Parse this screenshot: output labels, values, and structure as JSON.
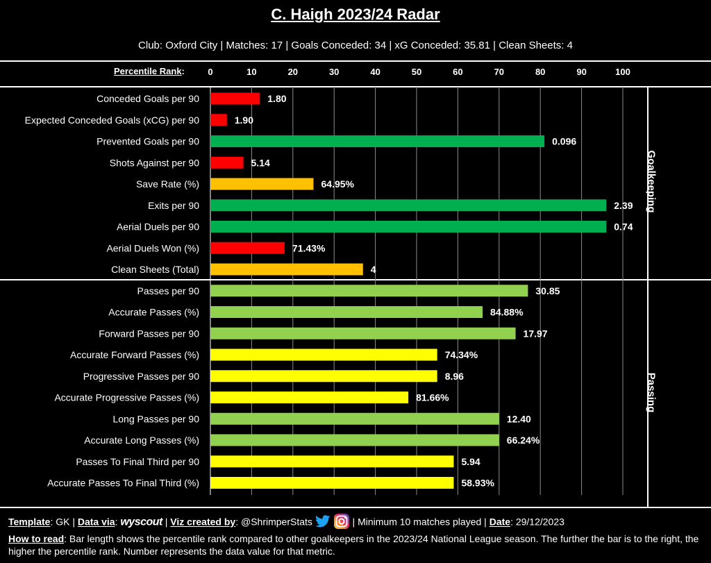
{
  "header": {
    "title": "C. Haigh 2023/24 Radar",
    "subtitle": "Club: Oxford City | Matches: 17 | Goals Conceded: 34 | xG Conceded: 35.81 | Clean Sheets: 4"
  },
  "axis": {
    "label": "Percentile Rank",
    "suffix": ":"
  },
  "chart_data": {
    "type": "bar",
    "orientation": "horizontal",
    "title": "C. Haigh 2023/24 Radar",
    "xlabel": "Percentile Rank",
    "xlim": [
      0,
      100
    ],
    "xticks": [
      "0",
      "10",
      "20",
      "30",
      "40",
      "50",
      "60",
      "70",
      "80",
      "90",
      "100"
    ],
    "sections": [
      {
        "name": "Goalkeeping",
        "bars": [
          {
            "label": "Conceded Goals per 90",
            "percentile": 12,
            "value": "1.80",
            "color": "#ff0000"
          },
          {
            "label": "Expected Conceded Goals (xCG) per 90",
            "percentile": 4,
            "value": "1.90",
            "color": "#ff0000"
          },
          {
            "label": "Prevented Goals per 90",
            "percentile": 81,
            "value": "0.096",
            "color": "#00b050"
          },
          {
            "label": "Shots Against per 90",
            "percentile": 8,
            "value": "5.14",
            "color": "#ff0000"
          },
          {
            "label": "Save Rate (%)",
            "percentile": 25,
            "value": "64.95%",
            "color": "#ffc000"
          },
          {
            "label": "Exits per 90",
            "percentile": 96,
            "value": "2.39",
            "color": "#00b050"
          },
          {
            "label": "Aerial Duels per 90",
            "percentile": 96,
            "value": "0.74",
            "color": "#00b050"
          },
          {
            "label": "Aerial Duels Won (%)",
            "percentile": 18,
            "value": "71.43%",
            "color": "#ff0000"
          },
          {
            "label": "Clean Sheets (Total)",
            "percentile": 37,
            "value": "4",
            "color": "#ffc000"
          }
        ]
      },
      {
        "name": "Passing",
        "bars": [
          {
            "label": "Passes per 90",
            "percentile": 77,
            "value": "30.85",
            "color": "#92d050"
          },
          {
            "label": "Accurate Passes (%)",
            "percentile": 66,
            "value": "84.88%",
            "color": "#92d050"
          },
          {
            "label": "Forward Passes per 90",
            "percentile": 74,
            "value": "17.97",
            "color": "#92d050"
          },
          {
            "label": "Accurate Forward Passes (%)",
            "percentile": 55,
            "value": "74.34%",
            "color": "#ffff00"
          },
          {
            "label": "Progressive Passes per 90",
            "percentile": 55,
            "value": "8.96",
            "color": "#ffff00"
          },
          {
            "label": "Accurate Progressive Passes (%)",
            "percentile": 48,
            "value": "81.66%",
            "color": "#ffff00"
          },
          {
            "label": "Long Passes per 90",
            "percentile": 70,
            "value": "12.40",
            "color": "#92d050"
          },
          {
            "label": "Accurate Long Passes (%)",
            "percentile": 70,
            "value": "66.24%",
            "color": "#92d050"
          },
          {
            "label": "Passes To Final Third per 90",
            "percentile": 59,
            "value": "5.94",
            "color": "#ffff00"
          },
          {
            "label": "Accurate Passes To Final Third (%)",
            "percentile": 59,
            "value": "58.93%",
            "color": "#ffff00"
          }
        ]
      }
    ]
  },
  "footer": {
    "template_label": "Template",
    "template_value": ": GK | ",
    "data_label": "Data via",
    "data_colon": ": ",
    "data_source": "wyscout",
    "sep1": " | ",
    "viz_label": "Viz created by",
    "viz_value": ": @ShrimperStats ",
    "min_matches": " | Minimum 10 matches played | ",
    "date_label": "Date",
    "date_value": ": 29/12/2023",
    "howto_label": "How to read",
    "howto_text": ": Bar length shows the percentile rank compared to other goalkeepers in the 2023/24 National League season. The further the bar is to the right, the higher the percentile rank. Number represents the data value for that metric.",
    "icons": [
      "twitter-icon",
      "instagram-icon"
    ]
  }
}
